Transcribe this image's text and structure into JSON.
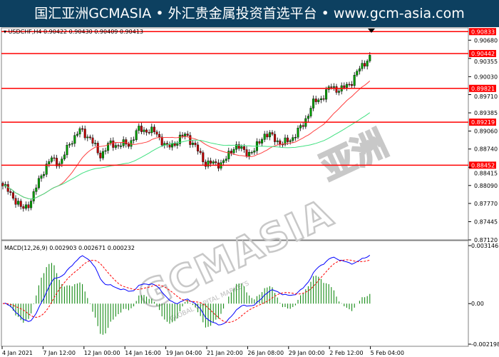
{
  "banner": {
    "title": "国汇亚洲GCMASIA • 外汇贵金属投资首选平台 • www.gcm-asia.com"
  },
  "watermark": {
    "text": "GCMASIA",
    "subtext": "GLOBAL CAPITAL MARKETS",
    "brand_cn": "亚洲"
  },
  "colors": {
    "banner_bg": "#0d4060",
    "bull": "#00a000",
    "bear": "#c00000",
    "level_line": "#ff0000",
    "ma_fast": "#ff4040",
    "ma_slow": "#40e080",
    "macd_line": "#0000ff",
    "signal_line": "#ff0000",
    "histogram": "#008000"
  },
  "chart_data": [
    {
      "type": "candlestick",
      "title": "USDCHF,H4  0.90422 0.90430 0.90409 0.90413",
      "symbol": "USDCHF,H4",
      "ohlc_last": [
        0.90422,
        0.9043,
        0.90409,
        0.90413
      ],
      "ylim": [
        0.8712,
        0.909
      ],
      "y_ticks": [
        "0.90680",
        "0.90355",
        "0.90030",
        "0.89710",
        "0.89385",
        "0.89060",
        "0.88740",
        "0.88415",
        "0.88090",
        "0.87770",
        "0.87445",
        "0.87120"
      ],
      "horizontal_levels": [
        "0.90833",
        "0.90442",
        "0.89821",
        "0.89219",
        "0.88452"
      ],
      "x_ticks": [
        "4 Jan 2021",
        "7 Jan 12:00",
        "12 Jan 00:00",
        "14 Jan 16:00",
        "19 Jan 04:00",
        "21 Jan 20:00",
        "26 Jan 08:00",
        "29 Jan 00:00",
        "2 Feb 12:00",
        "5 Feb 04:00"
      ],
      "approx_closes": [
        0.8808,
        0.8791,
        0.8765,
        0.8784,
        0.883,
        0.8856,
        0.8849,
        0.8888,
        0.8907,
        0.8895,
        0.8862,
        0.8882,
        0.8882,
        0.8882,
        0.8908,
        0.8908,
        0.8901,
        0.8875,
        0.8888,
        0.8901,
        0.8875,
        0.8849,
        0.8847,
        0.8852,
        0.8882,
        0.8869,
        0.8869,
        0.8901,
        0.8895,
        0.8882,
        0.8895,
        0.8914,
        0.8953,
        0.8966,
        0.8985,
        0.8979,
        0.8992,
        0.9018,
        0.9041
      ],
      "moving_averages": [
        "fast",
        "slow"
      ]
    },
    {
      "type": "macd",
      "title": "MACD(12,26,9) 0.002903 0.002671 0.000232",
      "values": {
        "macd": 0.002903,
        "signal": 0.002671,
        "histogram": 0.000232
      },
      "ylim": [
        -0.002198,
        0.003146
      ],
      "y_ticks": [
        "0.003146",
        "0.00",
        "-0.002198"
      ]
    }
  ]
}
